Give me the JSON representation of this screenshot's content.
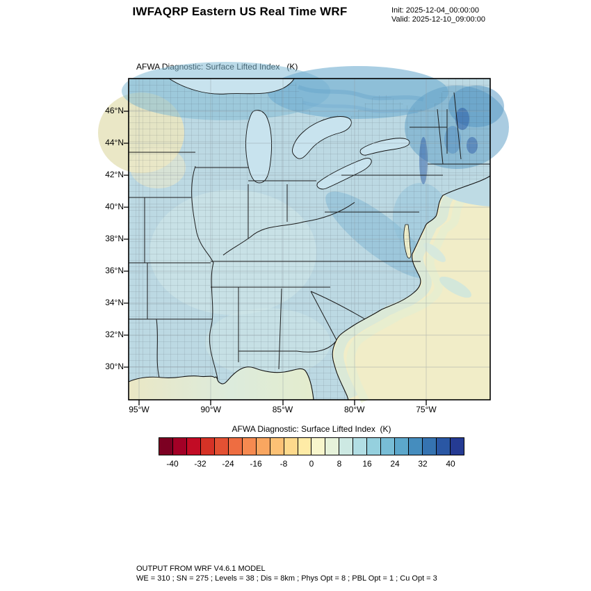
{
  "header": {
    "title": "IWFAQRP Eastern US Real Time WRF",
    "init": "Init: 2025-12-04_00:00:00",
    "valid": "Valid: 2025-12-10_09:00:00"
  },
  "map": {
    "title": "AFWA Diagnostic: Surface Lifted Index   (K)",
    "lat_labels": [
      "46°N",
      "44°N",
      "42°N",
      "40°N",
      "38°N",
      "36°N",
      "34°N",
      "32°N",
      "30°N"
    ],
    "lon_labels": [
      "95°W",
      "90°W",
      "85°W",
      "80°W",
      "75°W"
    ]
  },
  "colorbar": {
    "title": "AFWA Diagnostic: Surface Lifted Index  (K)",
    "tick_labels": [
      "-40",
      "-32",
      "-24",
      "-16",
      "-8",
      "0",
      "8",
      "16",
      "24",
      "32",
      "40"
    ],
    "colors": [
      "#7c0022",
      "#a30026",
      "#c20c25",
      "#d63226",
      "#e35133",
      "#ee6d41",
      "#f68a50",
      "#f9a660",
      "#fcc175",
      "#fdd98c",
      "#feeba6",
      "#f8f6cc",
      "#e6f2da",
      "#cde9e3",
      "#b2dee4",
      "#95d0de",
      "#78bdd6",
      "#5ca7cb",
      "#458dbe",
      "#3573b1",
      "#2a57a4",
      "#253b93"
    ]
  },
  "footer": {
    "line1": "OUTPUT FROM WRF V4.6.1 MODEL",
    "line2": "WE = 310 ; SN = 275 ; Levels = 38 ; Dis = 8km ; Phys Opt = 8 ; PBL Opt = 1 ; Cu Opt = 3"
  },
  "chart_data": {
    "type": "heatmap",
    "title": "AFWA Diagnostic: Surface Lifted Index (K)",
    "units": "K",
    "colorbar_levels": [
      -40,
      -32,
      -24,
      -16,
      -8,
      0,
      8,
      16,
      24,
      32,
      40
    ],
    "lat_ticks": [
      46,
      44,
      42,
      40,
      38,
      36,
      34,
      32,
      30
    ],
    "lon_ticks_deg_west": [
      95,
      90,
      85,
      80,
      75
    ],
    "legend_position": "bottom"
  }
}
